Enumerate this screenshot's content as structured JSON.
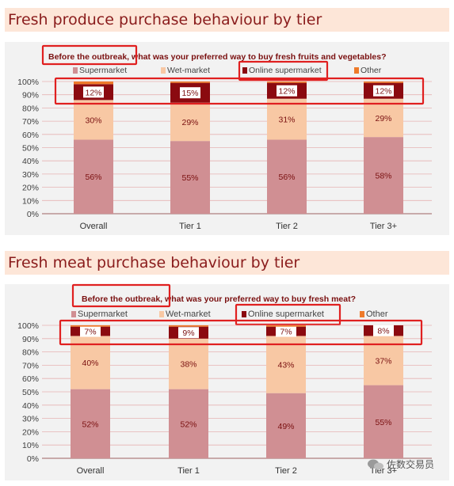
{
  "sections": [
    {
      "title": "Fresh produce purchase behaviour by tier",
      "chart_data": {
        "type": "bar",
        "stacked": true,
        "question_highlight": "Before the outbreak,",
        "question_rest": " what was your preferred way to buy fresh fruits and vegetables?",
        "categories": [
          "Overall",
          "Tier 1",
          "Tier 2",
          "Tier 3+"
        ],
        "series": [
          {
            "name": "Supermarket",
            "values": [
              56,
              55,
              56,
              58
            ],
            "labels": [
              "56%",
              "55%",
              "56%",
              "58%"
            ],
            "color": "#d08f93"
          },
          {
            "name": "Wet-market",
            "values": [
              30,
              29,
              31,
              29
            ],
            "labels": [
              "30%",
              "29%",
              "31%",
              "29%"
            ],
            "color": "#f8c8a4"
          },
          {
            "name": "Online supermarket",
            "values": [
              12,
              15,
              12,
              12
            ],
            "labels": [
              "12%",
              "15%",
              "12%",
              "12%"
            ],
            "color": "#8b0a10"
          },
          {
            "name": "Other",
            "values": [
              2,
              1,
              1,
              1
            ],
            "labels": [
              "",
              "",
              "",
              ""
            ],
            "color": "#ee7a2a"
          }
        ],
        "yticks": [
          "0%",
          "10%",
          "20%",
          "30%",
          "40%",
          "50%",
          "60%",
          "70%",
          "80%",
          "90%",
          "100%"
        ],
        "ylim": [
          0,
          100
        ],
        "grid": true,
        "legend": "top"
      }
    },
    {
      "title": "Fresh meat purchase behaviour by tier",
      "chart_data": {
        "type": "bar",
        "stacked": true,
        "question_highlight": "Before the outbreak,",
        "question_rest": " what was your preferred way to buy fresh meat?",
        "categories": [
          "Overall",
          "Tier 1",
          "Tier 2",
          "Tier 3+"
        ],
        "series": [
          {
            "name": "Supermarket",
            "values": [
              52,
              52,
              49,
              55
            ],
            "labels": [
              "52%",
              "52%",
              "49%",
              "55%"
            ],
            "color": "#d08f93"
          },
          {
            "name": "Wet-market",
            "values": [
              40,
              38,
              43,
              37
            ],
            "labels": [
              "40%",
              "38%",
              "43%",
              "37%"
            ],
            "color": "#f8c8a4"
          },
          {
            "name": "Online supermarket",
            "values": [
              7,
              9,
              7,
              8
            ],
            "labels": [
              "7%",
              "9%",
              "7%",
              "8%"
            ],
            "color": "#8b0a10"
          },
          {
            "name": "Other",
            "values": [
              1,
              1,
              1,
              0
            ],
            "labels": [
              "",
              "",
              "",
              ""
            ],
            "color": "#ee7a2a"
          }
        ],
        "yticks": [
          "0%",
          "10%",
          "20%",
          "30%",
          "40%",
          "50%",
          "60%",
          "70%",
          "80%",
          "90%",
          "100%"
        ],
        "ylim": [
          0,
          100
        ],
        "grid": true,
        "legend": "top"
      }
    }
  ],
  "watermark": "佐数交易员",
  "colors": {
    "highlight_box": "#e02020",
    "grid": "#e6b3b3",
    "axis_text": "#404040",
    "title_text": "#8a1c1c"
  }
}
